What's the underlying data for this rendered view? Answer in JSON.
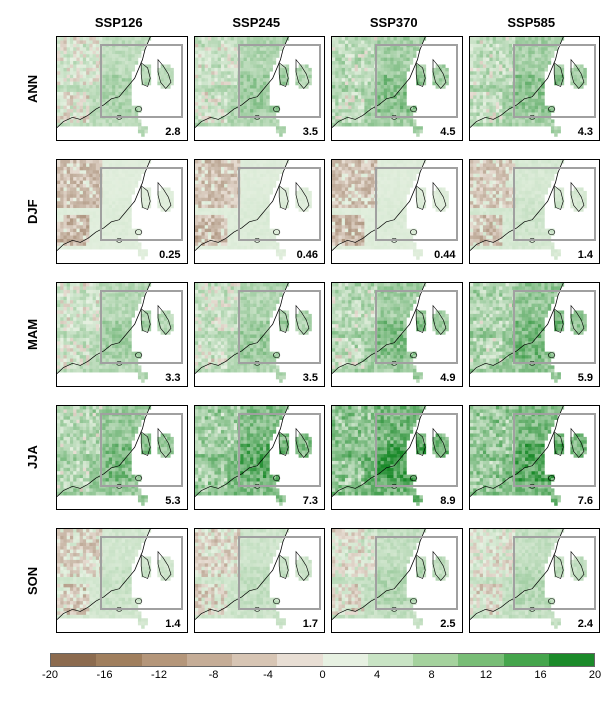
{
  "figure": {
    "type": "small-multiples-map-grid",
    "region": "East Asia",
    "map_domain": {
      "lon": [
        75,
        150
      ],
      "lat": [
        8,
        55
      ]
    },
    "roi_box": {
      "lon": [
        100,
        148
      ],
      "lat": [
        18,
        52
      ]
    },
    "columns": [
      "SSP126",
      "SSP245",
      "SSP370",
      "SSP585"
    ],
    "rows": [
      "ANN",
      "DJF",
      "MAM",
      "JJA",
      "SON"
    ],
    "panel_values": {
      "ANN": {
        "SSP126": "2.8",
        "SSP245": "3.5",
        "SSP370": "4.5",
        "SSP585": "4.3"
      },
      "DJF": {
        "SSP126": "0.25",
        "SSP245": "0.46",
        "SSP370": "0.44",
        "SSP585": "1.4"
      },
      "MAM": {
        "SSP126": "3.3",
        "SSP245": "3.5",
        "SSP370": "4.9",
        "SSP585": "5.9"
      },
      "JJA": {
        "SSP126": "5.3",
        "SSP245": "7.3",
        "SSP370": "8.9",
        "SSP585": "7.6"
      },
      "SON": {
        "SSP126": "1.4",
        "SSP245": "1.7",
        "SSP370": "2.5",
        "SSP585": "2.4"
      }
    },
    "panel_intensity": {
      "ANN": {
        "SSP126": 0.3,
        "SSP245": 0.38,
        "SSP370": 0.48,
        "SSP585": 0.46
      },
      "DJF": {
        "SSP126": 0.05,
        "SSP245": 0.06,
        "SSP370": 0.06,
        "SSP585": 0.12
      },
      "MAM": {
        "SSP126": 0.35,
        "SSP245": 0.38,
        "SSP370": 0.5,
        "SSP585": 0.58
      },
      "JJA": {
        "SSP126": 0.55,
        "SSP245": 0.7,
        "SSP370": 0.82,
        "SSP585": 0.74
      },
      "SON": {
        "SSP126": 0.15,
        "SSP245": 0.18,
        "SSP370": 0.26,
        "SSP585": 0.25
      }
    },
    "colorbar": {
      "ticks": [
        "-20",
        "-16",
        "-12",
        "-8",
        "-4",
        "0",
        "4",
        "8",
        "12",
        "16",
        "20"
      ],
      "colors": [
        "#8c6b4f",
        "#a07f5e",
        "#b4967a",
        "#c5ad97",
        "#d7c5b4",
        "#e8ded4",
        "#e7f1e2",
        "#c9e4c5",
        "#a5d29e",
        "#78bd76",
        "#45a54c",
        "#1b8a2a"
      ],
      "neg_color_ramp": [
        "#e8ded4",
        "#8c6b4f"
      ],
      "pos_color_ramp": [
        "#e7f1e2",
        "#1b8a2a"
      ]
    },
    "styling": {
      "panel_border": "#000000",
      "roi_border": "#a0a0a0",
      "ocean_color": "#ffffff",
      "coastline_color": "#000000",
      "font_family": "Arial",
      "col_header_fontsize": 13,
      "row_label_fontsize": 13,
      "value_fontsize": 11,
      "tick_fontsize": 11
    }
  }
}
